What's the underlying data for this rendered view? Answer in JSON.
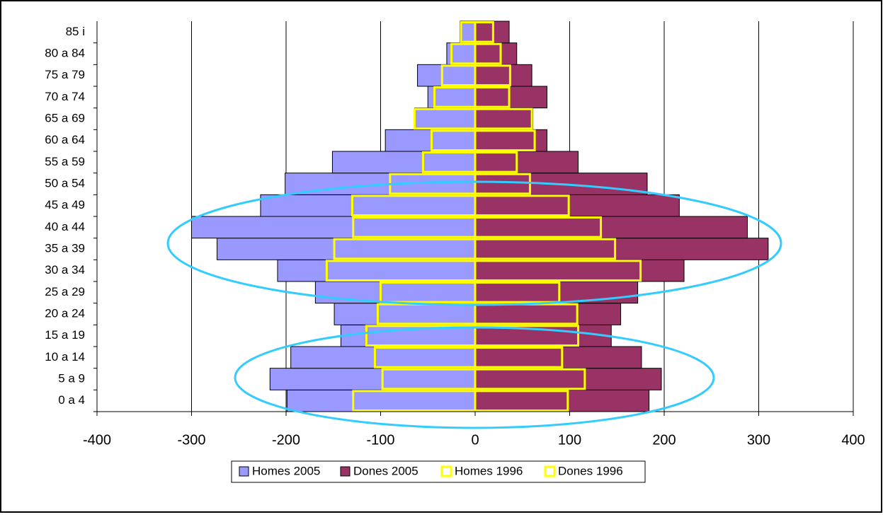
{
  "chart_data": {
    "type": "pyramid",
    "categories": [
      "0 a 4",
      "5 a 9",
      "10 a 14",
      "15 a 19",
      "20 a 24",
      "25 a 29",
      "30 a 34",
      "35 a 39",
      "40 a 44",
      "45 a 49",
      "50 a 54",
      "55 a 59",
      "60 a 64",
      "65 a 69",
      "70 a 74",
      "75 a 79",
      "80 a 84",
      "85 i"
    ],
    "series": [
      {
        "name": "Homes 2005",
        "color": "#9999ff",
        "edgecolor": "#000000",
        "values": [
          -199,
          -217,
          -195,
          -142,
          -149,
          -169,
          -209,
          -273,
          -300,
          -227,
          -201,
          -151,
          -95,
          -64,
          -50,
          -61,
          -30,
          -16
        ]
      },
      {
        "name": "Dones 2005",
        "color": "#993366",
        "edgecolor": "#000000",
        "values": [
          184,
          197,
          176,
          144,
          154,
          172,
          221,
          310,
          288,
          216,
          182,
          109,
          76,
          61,
          76,
          60,
          44,
          36
        ]
      },
      {
        "name": "Homes 1996",
        "color": "none",
        "edgecolor": "#ffff00",
        "values": [
          -129,
          -98,
          -106,
          -115,
          -103,
          -100,
          -157,
          -149,
          -129,
          -130,
          -90,
          -55,
          -46,
          -64,
          -43,
          -35,
          -25,
          -15
        ]
      },
      {
        "name": "Dones 1996",
        "color": "none",
        "edgecolor": "#ffff00",
        "values": [
          98,
          116,
          92,
          109,
          108,
          89,
          175,
          148,
          133,
          99,
          58,
          44,
          63,
          60,
          36,
          37,
          27,
          19
        ]
      }
    ],
    "xlim": [
      -400,
      400
    ],
    "xticks": [
      -400,
      -300,
      -200,
      -100,
      0,
      100,
      200,
      300,
      400
    ],
    "grid": true,
    "legend": "bottom"
  }
}
